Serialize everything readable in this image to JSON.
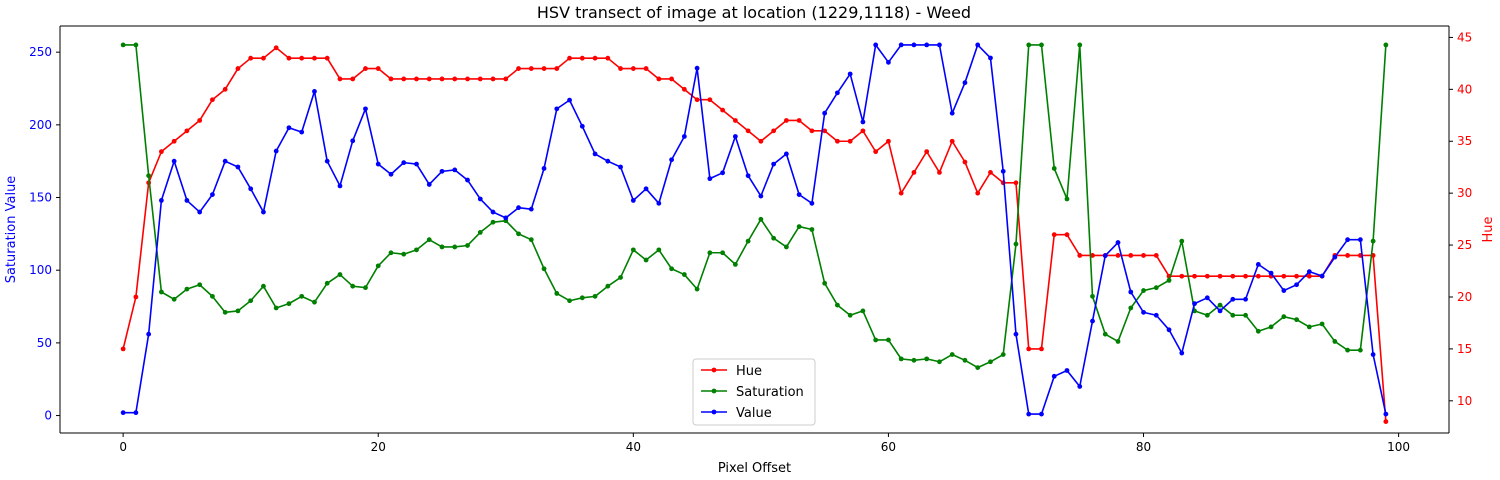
{
  "colors": {
    "hue": "#ff0000",
    "saturation": "#008000",
    "value": "#0000ff",
    "axis": "#000000",
    "background": "#ffffff"
  },
  "chart_data": {
    "type": "line",
    "title": "HSV transect of image at location (1229,1118) - Weed",
    "xlabel": "Pixel Offset",
    "ylabel_left": "Saturation Value",
    "ylabel_right": "Hue",
    "xlim": [
      -4.95,
      103.95
    ],
    "ylim_left": [
      -12,
      268
    ],
    "ylim_right": [
      6.9,
      46.1
    ],
    "xticks": [
      0,
      20,
      40,
      60,
      80,
      100
    ],
    "yticks_left": [
      0,
      50,
      100,
      150,
      200,
      250
    ],
    "yticks_right": [
      10,
      15,
      20,
      25,
      30,
      35,
      40,
      45
    ],
    "grid": false,
    "legend_position": "bottom-center",
    "x": [
      0,
      1,
      2,
      3,
      4,
      5,
      6,
      7,
      8,
      9,
      10,
      11,
      12,
      13,
      14,
      15,
      16,
      17,
      18,
      19,
      20,
      21,
      22,
      23,
      24,
      25,
      26,
      27,
      28,
      29,
      30,
      31,
      32,
      33,
      34,
      35,
      36,
      37,
      38,
      39,
      40,
      41,
      42,
      43,
      44,
      45,
      46,
      47,
      48,
      49,
      50,
      51,
      52,
      53,
      54,
      55,
      56,
      57,
      58,
      59,
      60,
      61,
      62,
      63,
      64,
      65,
      66,
      67,
      68,
      69,
      70,
      71,
      72,
      73,
      74,
      75,
      76,
      77,
      78,
      79,
      80,
      81,
      82,
      83,
      84,
      85,
      86,
      87,
      88,
      89,
      90,
      91,
      92,
      93,
      94,
      95,
      96,
      97,
      98,
      99
    ],
    "series": [
      {
        "name": "Hue",
        "axis": "right",
        "color": "#ff0000",
        "values": [
          15,
          20,
          31,
          34,
          35,
          36,
          37,
          39,
          40,
          42,
          43,
          43,
          44,
          43,
          43,
          43,
          43,
          41,
          41,
          42,
          42,
          41,
          41,
          41,
          41,
          41,
          41,
          41,
          41,
          41,
          41,
          42,
          42,
          42,
          42,
          43,
          43,
          43,
          43,
          42,
          42,
          42,
          41,
          41,
          40,
          39,
          39,
          38,
          37,
          36,
          35,
          36,
          37,
          37,
          36,
          36,
          35,
          35,
          36,
          34,
          35,
          30,
          32,
          34,
          32,
          35,
          33,
          30,
          32,
          31,
          31,
          15,
          15,
          26,
          26,
          24,
          24,
          24,
          24,
          24,
          24,
          24,
          22,
          22,
          22,
          22,
          22,
          22,
          22,
          22,
          22,
          22,
          22,
          22,
          22,
          24,
          24,
          24,
          24,
          8
        ]
      },
      {
        "name": "Saturation",
        "axis": "left",
        "color": "#008000",
        "values": [
          255,
          255,
          165,
          85,
          80,
          87,
          90,
          82,
          71,
          72,
          79,
          89,
          74,
          77,
          82,
          78,
          91,
          97,
          89,
          88,
          103,
          112,
          111,
          114,
          121,
          116,
          116,
          117,
          126,
          133,
          134,
          125,
          121,
          101,
          84,
          79,
          81,
          82,
          89,
          95,
          114,
          107,
          114,
          101,
          97,
          87,
          112,
          112,
          104,
          120,
          135,
          122,
          116,
          130,
          128,
          91,
          76,
          69,
          72,
          52,
          52,
          39,
          38,
          39,
          37,
          42,
          38,
          33,
          37,
          42,
          118,
          255,
          255,
          170,
          149,
          255,
          82,
          56,
          51,
          74,
          86,
          88,
          93,
          120,
          72,
          69,
          76,
          69,
          69,
          58,
          61,
          68,
          66,
          61,
          63,
          51,
          45,
          45,
          120,
          255
        ]
      },
      {
        "name": "Value",
        "axis": "left",
        "color": "#0000ff",
        "values": [
          2,
          2,
          56,
          148,
          175,
          148,
          140,
          152,
          175,
          171,
          156,
          140,
          182,
          198,
          195,
          223,
          175,
          158,
          189,
          211,
          173,
          166,
          174,
          173,
          159,
          168,
          169,
          162,
          149,
          140,
          136,
          143,
          142,
          170,
          211,
          217,
          199,
          180,
          175,
          171,
          148,
          156,
          146,
          176,
          192,
          239,
          163,
          167,
          192,
          165,
          151,
          173,
          180,
          152,
          146,
          208,
          222,
          235,
          202,
          255,
          243,
          255,
          255,
          255,
          255,
          208,
          229,
          255,
          246,
          168,
          56,
          1,
          1,
          27,
          31,
          20,
          65,
          110,
          119,
          85,
          71,
          69,
          59,
          43,
          77,
          81,
          72,
          80,
          80,
          104,
          98,
          86,
          90,
          99,
          96,
          109,
          121,
          121,
          42,
          1
        ]
      }
    ]
  }
}
